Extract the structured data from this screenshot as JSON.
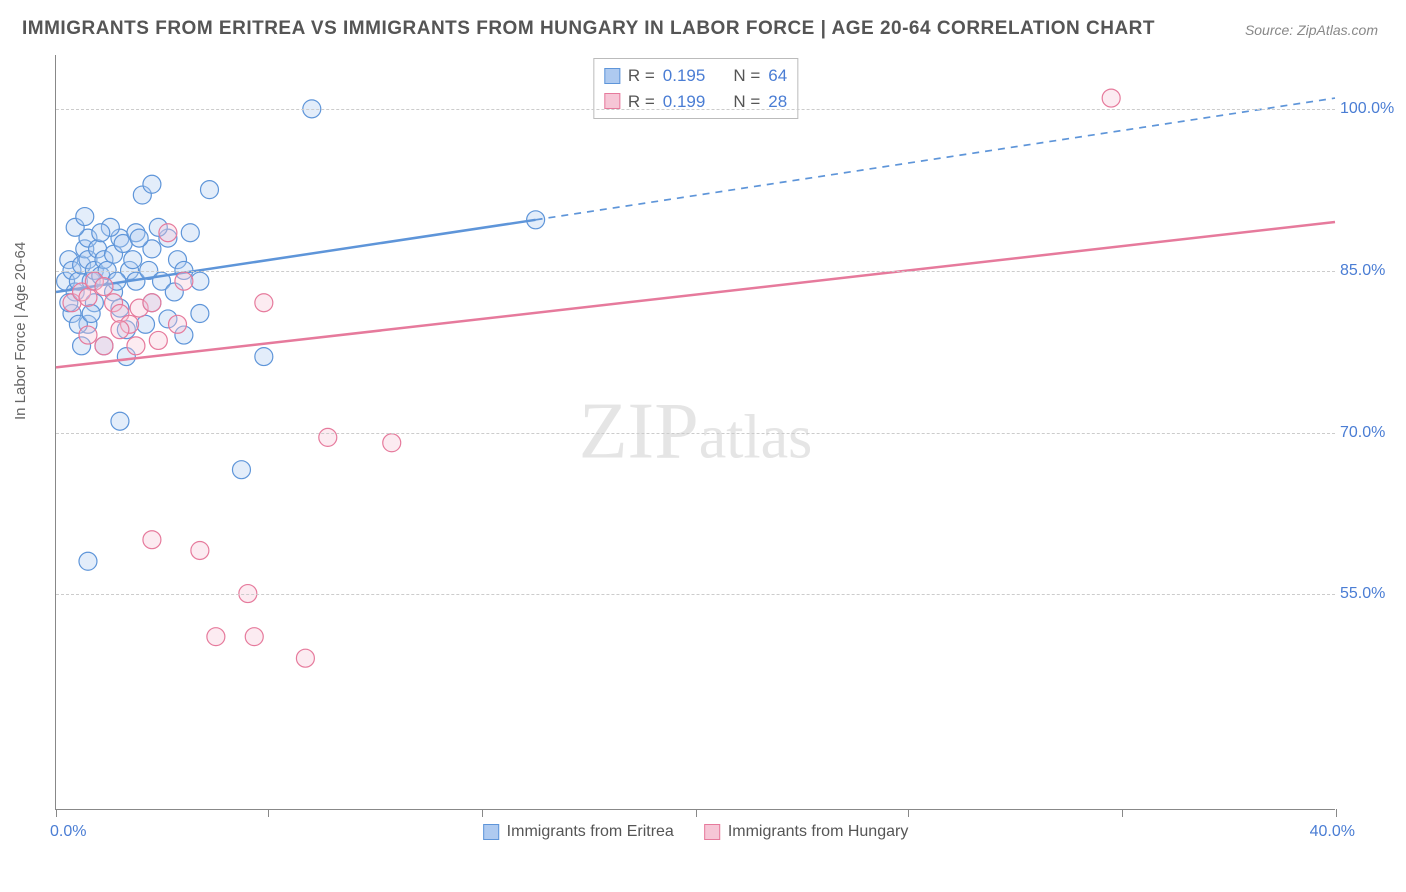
{
  "title": "IMMIGRANTS FROM ERITREA VS IMMIGRANTS FROM HUNGARY IN LABOR FORCE | AGE 20-64 CORRELATION CHART",
  "source": "Source: ZipAtlas.com",
  "ylabel": "In Labor Force | Age 20-64",
  "watermark_a": "ZIP",
  "watermark_b": "atlas",
  "chart": {
    "type": "scatter",
    "background_color": "#ffffff",
    "grid_color": "#cccccc",
    "axis_color": "#888888",
    "tick_label_color": "#4a7dd4",
    "label_fontsize": 15,
    "title_fontsize": 19,
    "tick_fontsize": 16,
    "marker_radius": 9,
    "fill_opacity": 0.35,
    "xlim": [
      0,
      40
    ],
    "ylim": [
      35,
      105
    ],
    "yticks": [
      55,
      70,
      85,
      100
    ],
    "ytick_labels": [
      "55.0%",
      "70.0%",
      "85.0%",
      "100.0%"
    ],
    "xtick_positions_pct": [
      0,
      16.6,
      33.3,
      50,
      66.6,
      83.3,
      100
    ],
    "xmin_label": "0.0%",
    "xmax_label": "40.0%",
    "series": [
      {
        "name": "Immigrants from Eritrea",
        "color": "#5e95d9",
        "fill": "#aecaf0",
        "R": "0.195",
        "N": "64",
        "trend": {
          "x1": 0,
          "y1": 83,
          "x2_solid": 15,
          "y2_solid": 89.7,
          "x2_dash": 40,
          "y2_dash": 101,
          "stroke_width": 2.5
        },
        "points": [
          [
            0.3,
            84
          ],
          [
            0.4,
            86
          ],
          [
            0.5,
            85
          ],
          [
            0.6,
            83
          ],
          [
            0.7,
            84
          ],
          [
            0.8,
            85.5
          ],
          [
            0.9,
            87
          ],
          [
            1.0,
            86
          ],
          [
            1.1,
            84
          ],
          [
            1.2,
            85
          ],
          [
            1.0,
            88
          ],
          [
            1.3,
            87
          ],
          [
            1.4,
            84.5
          ],
          [
            1.5,
            86
          ],
          [
            1.6,
            85
          ],
          [
            1.8,
            86.5
          ],
          [
            2.0,
            88
          ],
          [
            2.1,
            87.5
          ],
          [
            2.3,
            85
          ],
          [
            2.5,
            88.5
          ],
          [
            0.5,
            81
          ],
          [
            1.2,
            82
          ],
          [
            1.8,
            83
          ],
          [
            2.0,
            81.5
          ],
          [
            2.8,
            80
          ],
          [
            3.0,
            82
          ],
          [
            3.5,
            80.5
          ],
          [
            4.0,
            79
          ],
          [
            1.0,
            80
          ],
          [
            2.2,
            79.5
          ],
          [
            3.0,
            87
          ],
          [
            3.5,
            88
          ],
          [
            4.2,
            88.5
          ],
          [
            2.7,
            92
          ],
          [
            3.0,
            93
          ],
          [
            4.8,
            92.5
          ],
          [
            3.8,
            86
          ],
          [
            4.5,
            84
          ],
          [
            2.5,
            84
          ],
          [
            1.7,
            89
          ],
          [
            8.0,
            100
          ],
          [
            15.0,
            89.7
          ],
          [
            2.0,
            71
          ],
          [
            4.5,
            81
          ],
          [
            5.8,
            66.5
          ],
          [
            1.0,
            58
          ],
          [
            6.5,
            77
          ],
          [
            0.8,
            78
          ],
          [
            1.5,
            78
          ],
          [
            2.2,
            77
          ],
          [
            0.6,
            89
          ],
          [
            0.9,
            90
          ],
          [
            1.4,
            88.5
          ],
          [
            0.4,
            82
          ],
          [
            0.7,
            80
          ],
          [
            1.1,
            81
          ],
          [
            1.9,
            84
          ],
          [
            2.4,
            86
          ],
          [
            2.9,
            85
          ],
          [
            3.3,
            84
          ],
          [
            3.7,
            83
          ],
          [
            4.0,
            85
          ],
          [
            2.6,
            88
          ],
          [
            3.2,
            89
          ]
        ]
      },
      {
        "name": "Immigrants from Hungary",
        "color": "#e67a9c",
        "fill": "#f6c6d6",
        "R": "0.199",
        "N": "28",
        "trend": {
          "x1": 0,
          "y1": 76,
          "x2_solid": 40,
          "y2_solid": 89.5,
          "stroke_width": 2.5
        },
        "points": [
          [
            0.5,
            82
          ],
          [
            0.8,
            83
          ],
          [
            1.0,
            82.5
          ],
          [
            1.2,
            84
          ],
          [
            1.5,
            83.5
          ],
          [
            1.8,
            82
          ],
          [
            2.0,
            81
          ],
          [
            2.3,
            80
          ],
          [
            2.6,
            81.5
          ],
          [
            3.0,
            82
          ],
          [
            1.0,
            79
          ],
          [
            1.5,
            78
          ],
          [
            2.0,
            79.5
          ],
          [
            2.5,
            78
          ],
          [
            3.2,
            78.5
          ],
          [
            3.8,
            80
          ],
          [
            3.5,
            88.5
          ],
          [
            6.5,
            82
          ],
          [
            3.0,
            60
          ],
          [
            4.5,
            59
          ],
          [
            5.0,
            51
          ],
          [
            6.2,
            51
          ],
          [
            7.8,
            49
          ],
          [
            6.0,
            55
          ],
          [
            10.5,
            69
          ],
          [
            8.5,
            69.5
          ],
          [
            33.0,
            101
          ],
          [
            4.0,
            84
          ]
        ]
      }
    ]
  }
}
